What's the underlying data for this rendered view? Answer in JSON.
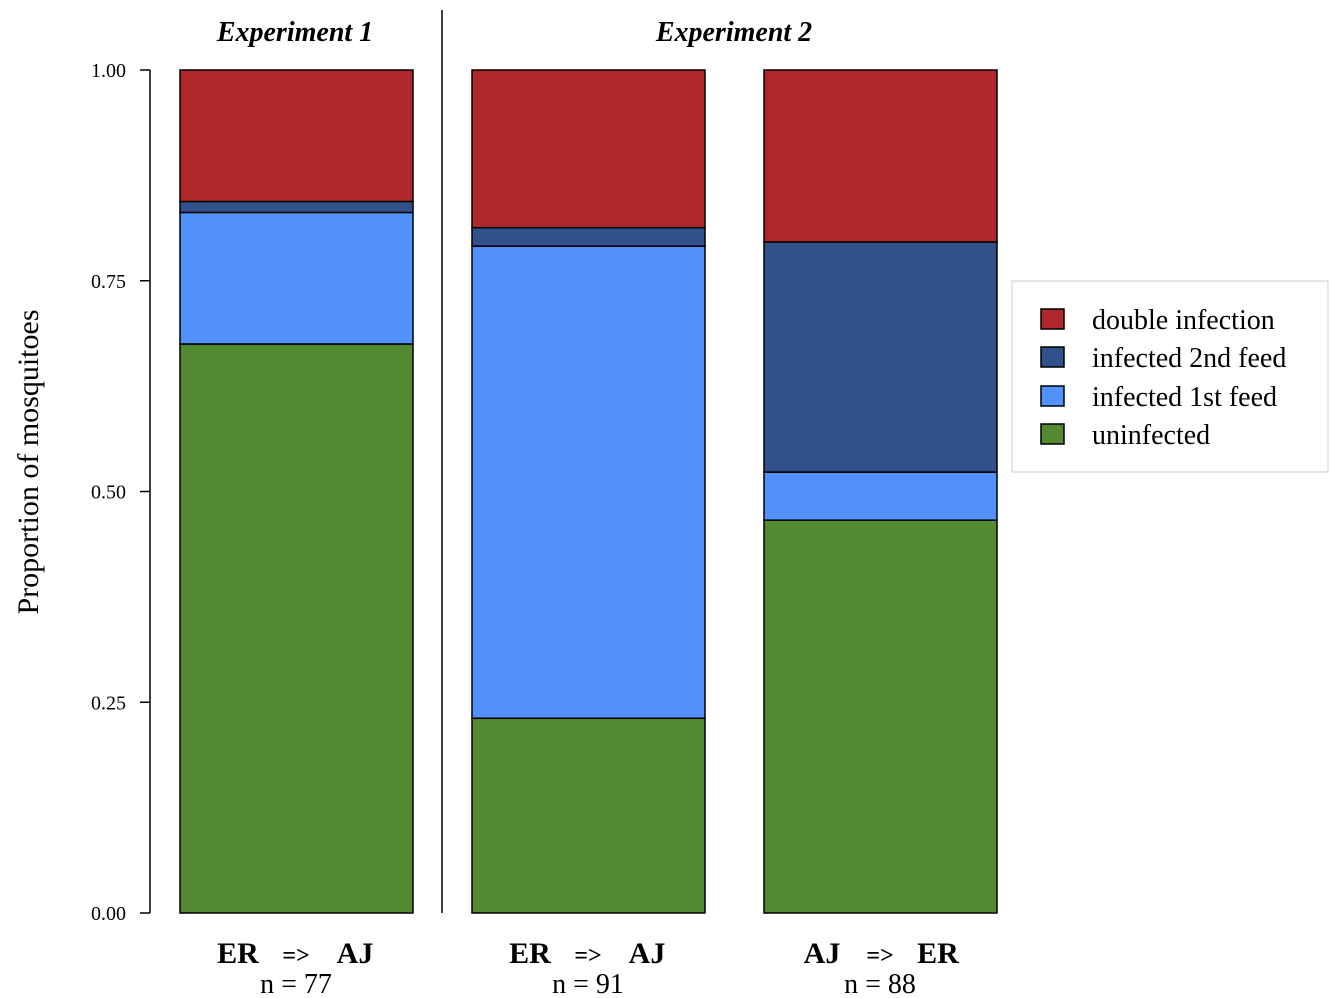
{
  "colors": {
    "double": "#AF292C",
    "second": "#30518A",
    "first": "#5291FA",
    "uninfected": "#538A31",
    "er": "#5291FA",
    "aj_dark": "#30518A"
  },
  "chart_data": {
    "type": "bar",
    "stacked": true,
    "ylabel": "Proportion of mosquitoes",
    "ylim": [
      0,
      1
    ],
    "yticks": [
      "0.00",
      "0.25",
      "0.50",
      "0.75",
      "1.00"
    ],
    "experiments": [
      "Experiment 1",
      "Experiment 2"
    ],
    "groups": [
      {
        "from": "ER",
        "arrow": "=>",
        "to": "AJ",
        "n_label": "n = 77",
        "from_color": "#5291FA",
        "to_color": "#30518A"
      },
      {
        "from": "ER",
        "arrow": "=>",
        "to": "AJ",
        "n_label": "n = 91",
        "from_color": "#5291FA",
        "to_color": "#30518A"
      },
      {
        "from": "AJ",
        "arrow": "=>",
        "to": "ER",
        "n_label": "n = 88",
        "from_color": "#5291FA",
        "to_color": "#30518A"
      }
    ],
    "series": [
      {
        "name": "uninfected",
        "color": "#538A31",
        "values": [
          0.675,
          0.231,
          0.466
        ]
      },
      {
        "name": "infected 1st feed",
        "color": "#5291FA",
        "values": [
          0.156,
          0.56,
          0.057
        ]
      },
      {
        "name": "infected 2nd feed",
        "color": "#30518A",
        "values": [
          0.013,
          0.022,
          0.273
        ]
      },
      {
        "name": "double infection",
        "color": "#AF292C",
        "values": [
          0.156,
          0.187,
          0.204
        ]
      }
    ],
    "legend": {
      "placement": "right",
      "order": [
        "double infection",
        "infected 2nd feed",
        "infected 1st feed",
        "uninfected"
      ]
    }
  }
}
